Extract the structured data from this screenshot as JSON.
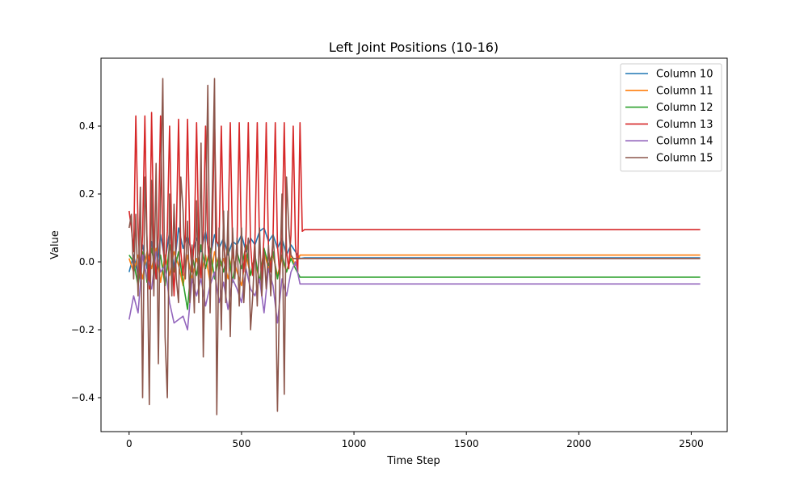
{
  "chart_data": {
    "type": "line",
    "title": "Left Joint Positions (10-16)",
    "xlabel": "Time Step",
    "ylabel": "Value",
    "xlim": [
      -125,
      2660
    ],
    "ylim": [
      -0.5,
      0.6
    ],
    "xticks": [
      0,
      500,
      1000,
      1500,
      2000,
      2500
    ],
    "xtick_labels": [
      "0",
      "500",
      "1000",
      "1500",
      "2000",
      "2500"
    ],
    "yticks": [
      -0.4,
      -0.2,
      0.0,
      0.2,
      0.4
    ],
    "ytick_labels": [
      "−0.4",
      "−0.2",
      "0.0",
      "0.2",
      "0.4"
    ],
    "grid": false,
    "legend_position": "top-right",
    "series": [
      {
        "name": "Column 10",
        "color": "#1f77b4",
        "x": [
          0,
          20,
          40,
          60,
          80,
          100,
          120,
          140,
          160,
          180,
          200,
          220,
          240,
          260,
          280,
          300,
          320,
          340,
          360,
          380,
          400,
          420,
          440,
          460,
          480,
          500,
          520,
          540,
          560,
          580,
          600,
          620,
          640,
          660,
          680,
          700,
          720,
          740,
          760,
          780,
          800,
          2540
        ],
        "y": [
          -0.03,
          0.02,
          -0.04,
          0.05,
          -0.02,
          0.06,
          -0.05,
          0.08,
          0.0,
          0.09,
          -0.02,
          0.1,
          0.04,
          0.08,
          0.02,
          0.07,
          0.03,
          0.09,
          0.01,
          0.08,
          0.04,
          0.07,
          0.02,
          0.06,
          0.05,
          0.08,
          0.03,
          0.07,
          0.05,
          0.09,
          0.1,
          0.06,
          0.08,
          0.04,
          0.07,
          0.02,
          0.05,
          0.03,
          0.01,
          0.012,
          0.012,
          0.012
        ]
      },
      {
        "name": "Column 11",
        "color": "#ff7f0e",
        "x": [
          0,
          20,
          40,
          60,
          80,
          100,
          120,
          140,
          160,
          180,
          200,
          220,
          240,
          260,
          280,
          300,
          320,
          340,
          360,
          380,
          400,
          420,
          440,
          460,
          480,
          500,
          520,
          540,
          560,
          580,
          600,
          620,
          640,
          660,
          680,
          700,
          720,
          740,
          760,
          780,
          800,
          2540
        ],
        "y": [
          0.01,
          -0.03,
          0.02,
          -0.05,
          0.03,
          -0.02,
          0.04,
          -0.06,
          0.02,
          -0.04,
          0.03,
          -0.01,
          -0.07,
          0.02,
          -0.05,
          0.01,
          -0.04,
          0.02,
          -0.06,
          0.03,
          -0.02,
          0.01,
          -0.05,
          0.02,
          -0.03,
          -0.07,
          0.02,
          -0.04,
          0.01,
          -0.06,
          0.03,
          -0.02,
          0.02,
          -0.04,
          0.01,
          -0.03,
          0.02,
          -0.01,
          0.02,
          0.02,
          0.02,
          0.02
        ]
      },
      {
        "name": "Column 12",
        "color": "#2ca02c",
        "x": [
          0,
          20,
          40,
          60,
          80,
          100,
          120,
          140,
          160,
          180,
          200,
          220,
          240,
          260,
          280,
          300,
          320,
          340,
          360,
          380,
          400,
          420,
          440,
          460,
          480,
          500,
          520,
          540,
          560,
          580,
          600,
          620,
          640,
          660,
          680,
          700,
          720,
          740,
          760,
          780,
          800,
          2540
        ],
        "y": [
          0.02,
          0.0,
          -0.07,
          0.03,
          -0.06,
          0.04,
          -0.04,
          0.02,
          -0.07,
          0.05,
          -0.03,
          0.03,
          -0.06,
          -0.14,
          0.02,
          -0.04,
          0.05,
          -0.02,
          0.04,
          -0.05,
          0.02,
          -0.03,
          0.04,
          -0.06,
          0.03,
          -0.02,
          0.05,
          -0.04,
          0.02,
          -0.06,
          0.04,
          -0.01,
          0.03,
          -0.05,
          0.02,
          -0.03,
          0.01,
          -0.02,
          -0.045,
          -0.045,
          -0.045,
          -0.045
        ]
      },
      {
        "name": "Column 13",
        "color": "#d62728",
        "x": [
          0,
          10,
          20,
          30,
          40,
          50,
          60,
          70,
          80,
          90,
          100,
          110,
          120,
          130,
          140,
          150,
          160,
          170,
          180,
          190,
          200,
          210,
          220,
          230,
          240,
          250,
          260,
          270,
          280,
          290,
          300,
          310,
          320,
          330,
          340,
          350,
          360,
          370,
          380,
          390,
          400,
          410,
          420,
          430,
          440,
          450,
          460,
          470,
          480,
          490,
          500,
          510,
          520,
          530,
          540,
          550,
          560,
          570,
          580,
          590,
          600,
          610,
          620,
          630,
          640,
          650,
          660,
          670,
          680,
          690,
          700,
          710,
          720,
          730,
          740,
          750,
          760,
          770,
          780,
          2540
        ],
        "y": [
          0.15,
          0.1,
          0.03,
          0.43,
          0.1,
          -0.05,
          0.08,
          0.43,
          0.05,
          -0.08,
          0.44,
          0.06,
          -0.05,
          0.08,
          0.43,
          0.06,
          -0.03,
          0.09,
          0.4,
          0.05,
          -0.1,
          0.08,
          0.42,
          0.03,
          -0.04,
          0.08,
          0.42,
          0.06,
          -0.03,
          0.07,
          0.41,
          0.04,
          -0.05,
          0.09,
          0.4,
          0.05,
          -0.04,
          0.08,
          0.42,
          0.06,
          0.05,
          0.4,
          0.06,
          -0.02,
          0.08,
          0.41,
          0.05,
          -0.04,
          0.06,
          0.41,
          0.04,
          -0.03,
          0.08,
          0.41,
          0.05,
          -0.04,
          0.07,
          0.41,
          0.05,
          -0.05,
          0.08,
          0.41,
          0.04,
          -0.03,
          0.07,
          0.41,
          0.05,
          -0.04,
          0.06,
          0.41,
          0.03,
          -0.02,
          0.08,
          0.4,
          0.05,
          -0.03,
          0.41,
          0.09,
          0.095,
          0.095
        ]
      },
      {
        "name": "Column 14",
        "color": "#9467bd",
        "x": [
          0,
          20,
          40,
          60,
          80,
          100,
          120,
          140,
          160,
          180,
          200,
          220,
          240,
          260,
          280,
          300,
          320,
          340,
          360,
          380,
          400,
          420,
          440,
          460,
          480,
          500,
          520,
          540,
          560,
          580,
          600,
          620,
          640,
          660,
          680,
          700,
          720,
          740,
          760,
          780,
          800,
          2540
        ],
        "y": [
          -0.17,
          -0.1,
          -0.15,
          0.02,
          -0.05,
          -0.08,
          0.03,
          -0.03,
          -0.01,
          -0.12,
          -0.18,
          -0.17,
          -0.16,
          -0.2,
          -0.05,
          -0.1,
          -0.05,
          -0.13,
          -0.07,
          -0.03,
          -0.12,
          -0.06,
          -0.14,
          -0.05,
          -0.08,
          -0.12,
          -0.02,
          -0.08,
          -0.1,
          -0.05,
          -0.15,
          -0.02,
          -0.07,
          -0.18,
          -0.05,
          -0.1,
          -0.03,
          0.0,
          -0.065,
          -0.065,
          -0.065,
          -0.065
        ]
      },
      {
        "name": "Column 15",
        "color": "#8c564b",
        "x": [
          0,
          10,
          20,
          30,
          40,
          50,
          60,
          70,
          80,
          90,
          100,
          110,
          120,
          130,
          140,
          150,
          160,
          170,
          180,
          190,
          200,
          210,
          220,
          230,
          240,
          250,
          260,
          270,
          280,
          290,
          300,
          310,
          320,
          330,
          340,
          350,
          360,
          370,
          380,
          390,
          400,
          410,
          420,
          430,
          440,
          450,
          460,
          470,
          480,
          490,
          500,
          510,
          520,
          530,
          540,
          550,
          560,
          570,
          580,
          590,
          600,
          610,
          620,
          630,
          640,
          650,
          660,
          670,
          680,
          690,
          700,
          710,
          720,
          730,
          740,
          750,
          760,
          770,
          780,
          2540
        ],
        "y": [
          0.1,
          0.14,
          -0.05,
          0.14,
          -0.1,
          0.22,
          -0.4,
          0.25,
          0.06,
          -0.42,
          0.24,
          -0.1,
          0.29,
          -0.3,
          0.2,
          0.54,
          -0.22,
          -0.4,
          0.2,
          -0.1,
          0.17,
          -0.05,
          -0.12,
          0.25,
          0.15,
          -0.05,
          0.12,
          -0.12,
          0.05,
          -0.15,
          0.18,
          -0.12,
          0.35,
          -0.28,
          0.1,
          0.52,
          -0.15,
          0.2,
          0.54,
          -0.45,
          0.1,
          -0.2,
          0.15,
          -0.12,
          0.15,
          -0.22,
          0.1,
          -0.05,
          0.07,
          -0.13,
          0.1,
          -0.12,
          0.0,
          0.07,
          -0.2,
          -0.1,
          0.05,
          -0.13,
          0.1,
          -0.1,
          0.03,
          -0.08,
          0.05,
          -0.1,
          0.08,
          -0.02,
          -0.44,
          -0.05,
          0.2,
          -0.39,
          0.25,
          0.1,
          0.02,
          0.01,
          0.01,
          0.01,
          0.01,
          0.01,
          0.01,
          0.01
        ]
      }
    ]
  }
}
